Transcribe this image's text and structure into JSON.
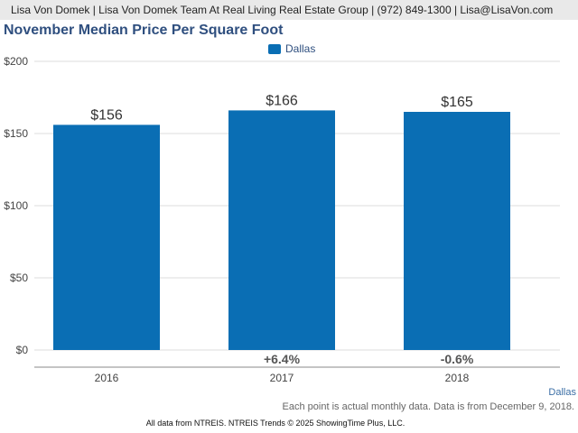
{
  "header": {
    "contact_line": "Lisa Von Domek | Lisa Von Domek Team At Real Living Real Estate Group | (972) 849-1300 | Lisa@LisaVon.com"
  },
  "colors": {
    "bar": "#0a6eb4",
    "title": "#2f4f7f",
    "grid": "#dddddd"
  },
  "chart_data": {
    "type": "bar",
    "title": "November Median Price Per Square Foot",
    "categories": [
      "2016",
      "2017",
      "2018"
    ],
    "series": [
      {
        "name": "Dallas",
        "values": [
          156,
          166,
          165
        ]
      }
    ],
    "value_labels": [
      "$156",
      "$166",
      "$165"
    ],
    "change_labels": [
      "",
      "+6.4%",
      "-0.6%"
    ],
    "ylim": [
      0,
      200
    ],
    "yticks": [
      0,
      50,
      100,
      150,
      200
    ],
    "ytick_labels": [
      "$0",
      "$50",
      "$100",
      "$150",
      "$200"
    ],
    "grid": true,
    "legend_position": "top-center"
  },
  "series_label": "Dallas",
  "note": "Each point is actual monthly data. Data is from December 9, 2018.",
  "footer": "All data from NTREIS. NTREIS Trends © 2025 ShowingTime Plus, LLC."
}
